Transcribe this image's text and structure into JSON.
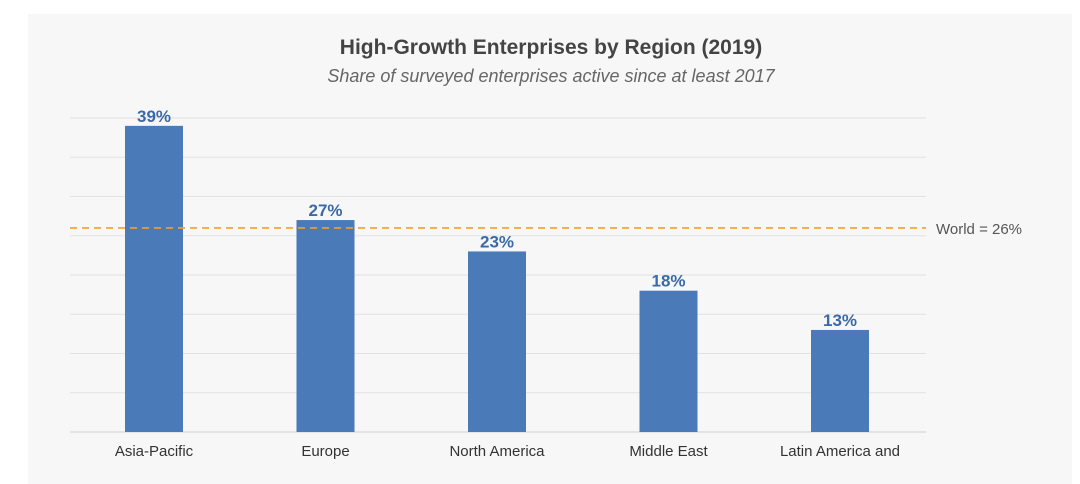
{
  "chart_data": {
    "type": "bar",
    "title": "High-Growth Enterprises by Region (2019)",
    "subtitle": "Share of surveyed enterprises active since at least 2017",
    "categories": [
      "Asia-Pacific",
      "Europe",
      "North America",
      "Middle East",
      "Latin America and"
    ],
    "values": [
      39,
      27,
      23,
      18,
      13
    ],
    "value_labels": [
      "39%",
      "27%",
      "23%",
      "18%",
      "13%"
    ],
    "reference_line": {
      "value": 26,
      "label": "World = 26%",
      "color": "#f0a030",
      "style": "dashed"
    },
    "bar_color": "#4a7ab8",
    "label_color": "#3a6aa8",
    "ylim": [
      0,
      40
    ],
    "grid": true,
    "xlabel": "",
    "ylabel": ""
  }
}
